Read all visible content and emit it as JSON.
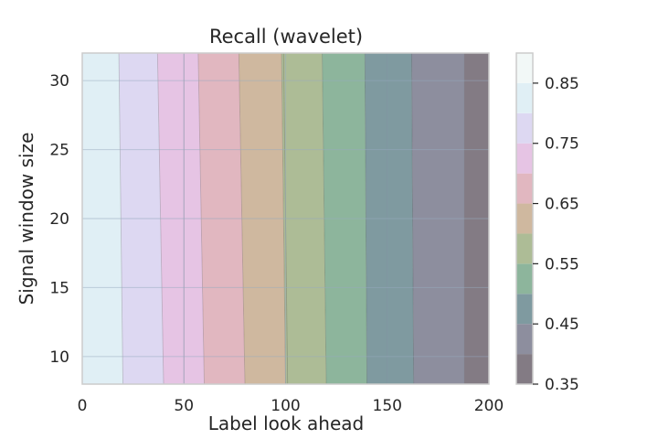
{
  "chart_data": {
    "type": "filled-contour",
    "title": "Recall (wavelet)",
    "xlabel": "Label look ahead",
    "ylabel": "Signal window size",
    "xlim": [
      0,
      200
    ],
    "ylim": [
      8,
      32
    ],
    "x_ticks": [
      0,
      50,
      100,
      150,
      200
    ],
    "x_tick_labels": [
      "0",
      "50",
      "100",
      "150",
      "200"
    ],
    "y_ticks": [
      10,
      15,
      20,
      25,
      30
    ],
    "y_tick_labels": [
      "10",
      "15",
      "20",
      "25",
      "30"
    ],
    "grid": true,
    "colorbar": {
      "min": 0.35,
      "max": 0.9,
      "tick_values": [
        0.35,
        0.45,
        0.55,
        0.65,
        0.75,
        0.85
      ],
      "tick_labels": [
        "0.35",
        "0.45",
        "0.55",
        "0.65",
        "0.75",
        "0.85"
      ]
    },
    "levels": [
      0.35,
      0.4,
      0.45,
      0.5,
      0.55,
      0.6,
      0.65,
      0.7,
      0.75,
      0.8,
      0.85,
      0.9
    ],
    "level_colors": [
      "#837b84",
      "#8d8e9e",
      "#7f9aa0",
      "#8db59c",
      "#adbc96",
      "#cfb89f",
      "#e1b7c0",
      "#e6c4e4",
      "#ddd8f2",
      "#e0eff5",
      "#f2f8f7"
    ],
    "contour_bands": [
      {
        "level_low": 0.8,
        "level_high": 0.9,
        "x_at_y8": 0,
        "x_at_y32": 0
      },
      {
        "level_low": 0.75,
        "level_high": 0.8,
        "x_at_y8": 20,
        "x_at_y32": 18
      },
      {
        "level_low": 0.7,
        "level_high": 0.75,
        "x_at_y8": 40,
        "x_at_y32": 37
      },
      {
        "level_low": 0.65,
        "level_high": 0.7,
        "x_at_y8": 60,
        "x_at_y32": 57
      },
      {
        "level_low": 0.6,
        "level_high": 0.65,
        "x_at_y8": 80,
        "x_at_y32": 77
      },
      {
        "level_low": 0.55,
        "level_high": 0.6,
        "x_at_y8": 100,
        "x_at_y32": 98
      },
      {
        "level_low": 0.5,
        "level_high": 0.55,
        "x_at_y8": 120,
        "x_at_y32": 118
      },
      {
        "level_low": 0.45,
        "level_high": 0.5,
        "x_at_y8": 140,
        "x_at_y32": 139
      },
      {
        "level_low": 0.4,
        "level_high": 0.45,
        "x_at_y8": 163,
        "x_at_y32": 162
      },
      {
        "level_low": 0.35,
        "level_high": 0.4,
        "x_at_y8": 188,
        "x_at_y32": 188
      }
    ],
    "contour_lines": [
      {
        "x_at_y8": 50,
        "x_at_y32": 50
      },
      {
        "x_at_y8": 101,
        "x_at_y32": 99
      },
      {
        "x_at_y8": 150,
        "x_at_y32": 150
      }
    ]
  }
}
